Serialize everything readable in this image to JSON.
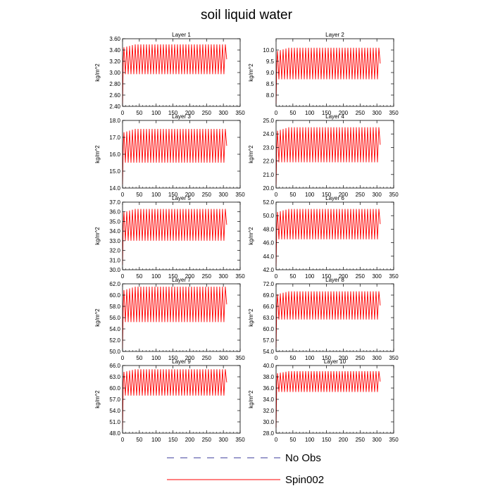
{
  "title": "soil liquid water",
  "legend": [
    {
      "label": "No Obs",
      "color": "#3b3b9b",
      "style": "dashed"
    },
    {
      "label": "Spin002",
      "color": "#ff0000",
      "style": "solid"
    }
  ],
  "chart_data": [
    {
      "type": "line",
      "title": "Layer 1",
      "ylabel": "kg/m^2",
      "xlim": [
        0,
        350
      ],
      "xticks": [
        0,
        50,
        100,
        150,
        200,
        250,
        300,
        350
      ],
      "ylim": [
        2.4,
        3.6
      ],
      "yticks": [
        "2.40",
        "2.60",
        "2.80",
        "3.00",
        "3.20",
        "3.40",
        "3.60"
      ],
      "series": [
        {
          "label": "Spin002",
          "start": 2.4,
          "low": 2.97,
          "high": 3.5,
          "cycles": 37,
          "x_end": 310
        }
      ]
    },
    {
      "type": "line",
      "title": "Layer 2",
      "ylabel": "kg/m^2",
      "xlim": [
        0,
        350
      ],
      "xticks": [
        0,
        50,
        100,
        150,
        200,
        250,
        300,
        350
      ],
      "ylim": [
        7.5,
        10.5
      ],
      "yticks": [
        "8.0",
        "8.5",
        "9.0",
        "9.5",
        "10.0"
      ],
      "series": [
        {
          "label": "Spin002",
          "start": 7.6,
          "low": 8.7,
          "high": 10.1,
          "cycles": 37,
          "x_end": 310
        }
      ]
    },
    {
      "type": "line",
      "title": "Layer 3",
      "ylabel": "kg/m^2",
      "xlim": [
        0,
        350
      ],
      "xticks": [
        0,
        50,
        100,
        150,
        200,
        250,
        300,
        350
      ],
      "ylim": [
        14.0,
        18.0
      ],
      "yticks": [
        "14.0",
        "15.0",
        "16.0",
        "17.0",
        "18.0"
      ],
      "series": [
        {
          "label": "Spin002",
          "start": 14.2,
          "low": 15.5,
          "high": 17.5,
          "cycles": 37,
          "x_end": 310
        }
      ]
    },
    {
      "type": "line",
      "title": "Layer 4",
      "ylabel": "kg/m^2",
      "xlim": [
        0,
        350
      ],
      "xticks": [
        0,
        50,
        100,
        150,
        200,
        250,
        300,
        350
      ],
      "ylim": [
        20.0,
        25.0
      ],
      "yticks": [
        "20.0",
        "21.0",
        "22.0",
        "23.0",
        "24.0",
        "25.0"
      ],
      "series": [
        {
          "label": "Spin002",
          "start": 20.1,
          "low": 21.9,
          "high": 24.5,
          "cycles": 37,
          "x_end": 310
        }
      ]
    },
    {
      "type": "line",
      "title": "Layer 5",
      "ylabel": "kg/m^2",
      "xlim": [
        0,
        350
      ],
      "xticks": [
        0,
        50,
        100,
        150,
        200,
        250,
        300,
        350
      ],
      "ylim": [
        30.0,
        37.0
      ],
      "yticks": [
        "30.0",
        "31.0",
        "32.0",
        "33.0",
        "34.0",
        "35.0",
        "36.0",
        "37.0"
      ],
      "series": [
        {
          "label": "Spin002",
          "start": 30.5,
          "low": 33.0,
          "high": 36.3,
          "cycles": 37,
          "x_end": 310
        }
      ]
    },
    {
      "type": "line",
      "title": "Layer 6",
      "ylabel": "kg/m^2",
      "xlim": [
        0,
        350
      ],
      "xticks": [
        0,
        50,
        100,
        150,
        200,
        250,
        300,
        350
      ],
      "ylim": [
        42.0,
        52.0
      ],
      "yticks": [
        "42.0",
        "44.0",
        "46.0",
        "48.0",
        "50.0",
        "52.0"
      ],
      "series": [
        {
          "label": "Spin002",
          "start": 42.5,
          "low": 46.5,
          "high": 51.0,
          "cycles": 37,
          "x_end": 310
        }
      ]
    },
    {
      "type": "line",
      "title": "Layer 7",
      "ylabel": "kg/m^2",
      "xlim": [
        0,
        350
      ],
      "xticks": [
        0,
        50,
        100,
        150,
        200,
        250,
        300,
        350
      ],
      "ylim": [
        50.0,
        62.0
      ],
      "yticks": [
        "50.0",
        "52.0",
        "54.0",
        "56.0",
        "58.0",
        "60.0",
        "62.0"
      ],
      "series": [
        {
          "label": "Spin002",
          "start": 50.5,
          "low": 55.2,
          "high": 61.5,
          "cycles": 37,
          "x_end": 310
        }
      ]
    },
    {
      "type": "line",
      "title": "Layer 8",
      "ylabel": "kg/m^2",
      "xlim": [
        0,
        350
      ],
      "xticks": [
        0,
        50,
        100,
        150,
        200,
        250,
        300,
        350
      ],
      "ylim": [
        54.0,
        72.0
      ],
      "yticks": [
        "54.0",
        "57.0",
        "60.0",
        "63.0",
        "66.0",
        "69.0",
        "72.0"
      ],
      "series": [
        {
          "label": "Spin002",
          "start": 55.0,
          "low": 62.5,
          "high": 70.0,
          "cycles": 37,
          "x_end": 310
        }
      ]
    },
    {
      "type": "line",
      "title": "Layer 9",
      "ylabel": "kg/m^2",
      "xlim": [
        0,
        350
      ],
      "xticks": [
        0,
        50,
        100,
        150,
        200,
        250,
        300,
        350
      ],
      "ylim": [
        48.0,
        66.0
      ],
      "yticks": [
        "48.0",
        "51.0",
        "54.0",
        "57.0",
        "60.0",
        "63.0",
        "66.0"
      ],
      "series": [
        {
          "label": "Spin002",
          "start": 49.0,
          "low": 58.0,
          "high": 65.0,
          "cycles": 37,
          "x_end": 310
        }
      ]
    },
    {
      "type": "line",
      "title": "Layer 10",
      "ylabel": "kg/m^2",
      "xlim": [
        0,
        350
      ],
      "xticks": [
        0,
        50,
        100,
        150,
        200,
        250,
        300,
        350
      ],
      "ylim": [
        28.0,
        40.0
      ],
      "yticks": [
        "28.0",
        "30.0",
        "32.0",
        "34.0",
        "36.0",
        "38.0",
        "40.0"
      ],
      "series": [
        {
          "label": "Spin002",
          "start": 29.0,
          "low": 35.3,
          "high": 39.0,
          "cycles": 37,
          "x_end": 310
        }
      ]
    }
  ]
}
